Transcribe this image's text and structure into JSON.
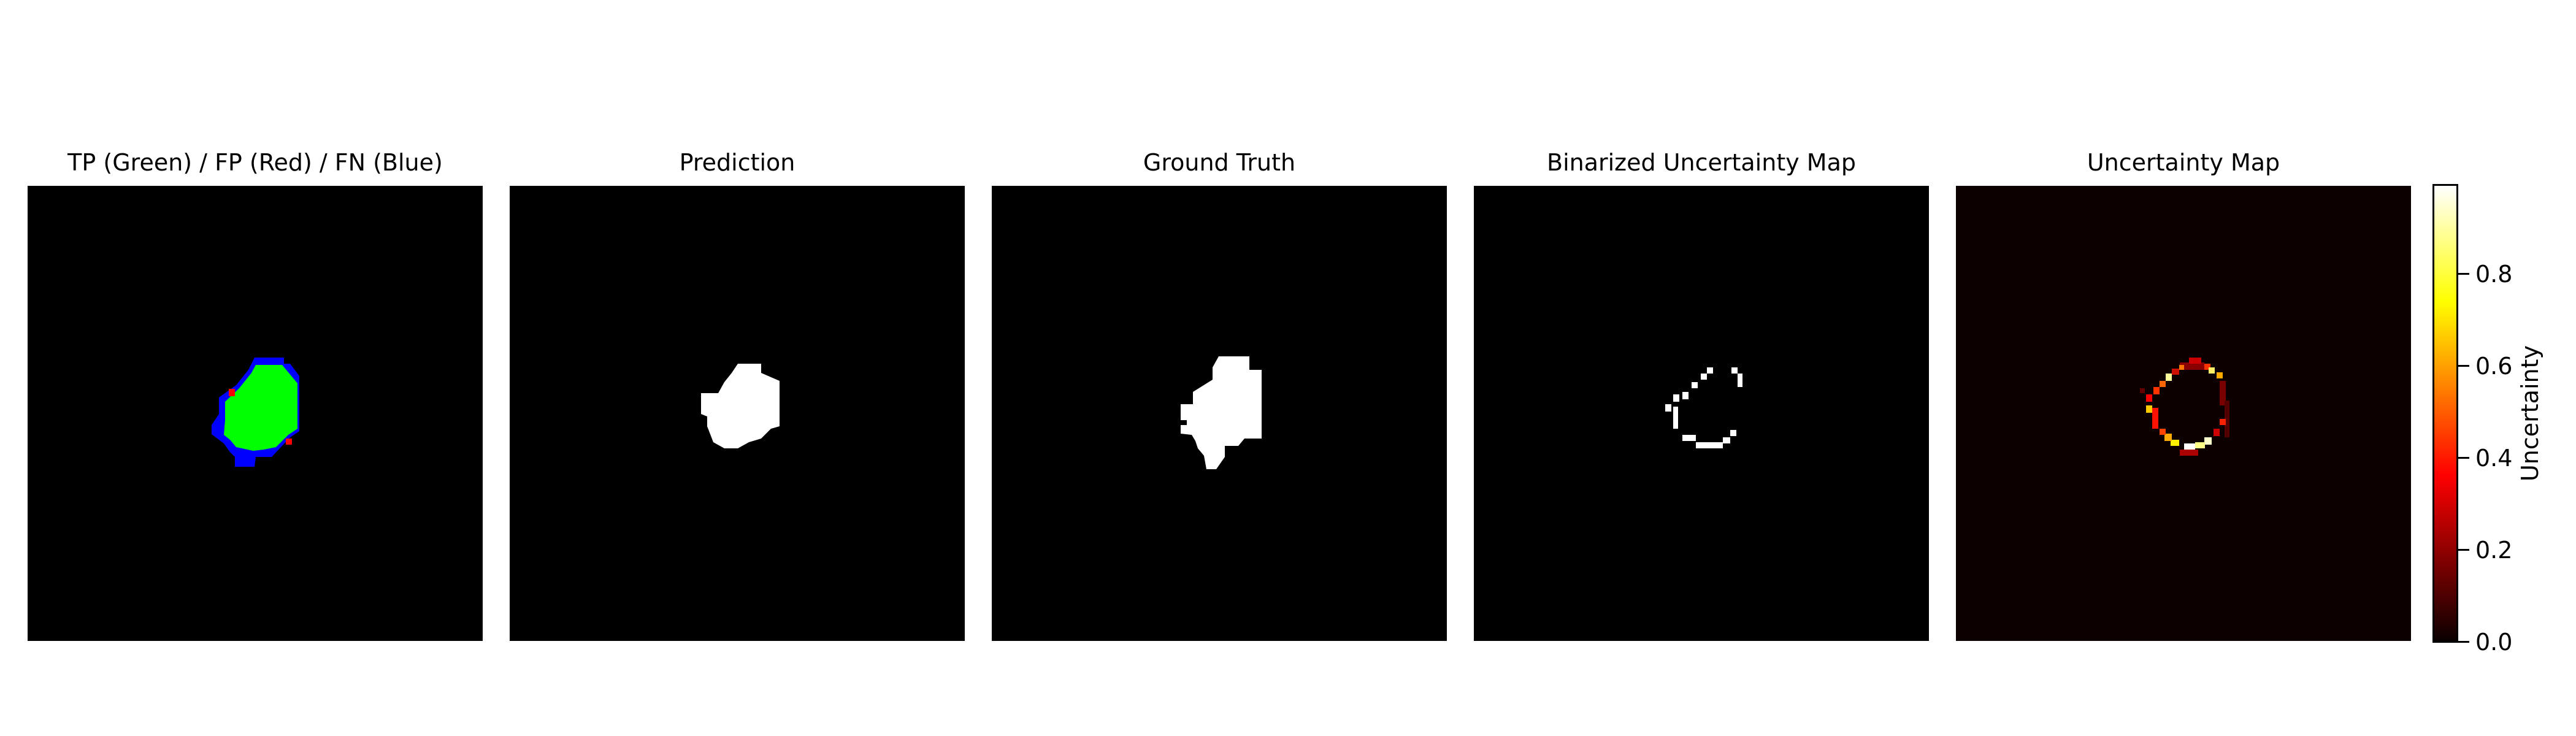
{
  "panels": [
    {
      "title": "TP (Green) / FP (Red) / FN (Blue)"
    },
    {
      "title": "Prediction"
    },
    {
      "title": "Ground Truth"
    },
    {
      "title": "Binarized Uncertainty Map"
    },
    {
      "title": "Uncertainty Map"
    }
  ],
  "colorbar": {
    "label": "Uncertainty",
    "ticks": [
      "0.0",
      "0.2",
      "0.4",
      "0.6",
      "0.8"
    ],
    "colormap": "hot",
    "range": [
      0.0,
      1.0
    ]
  },
  "colors": {
    "tp": "#00ff00",
    "fp": "#ff0000",
    "fn": "#0000ff",
    "mask": "#ffffff",
    "background": "#000000"
  }
}
